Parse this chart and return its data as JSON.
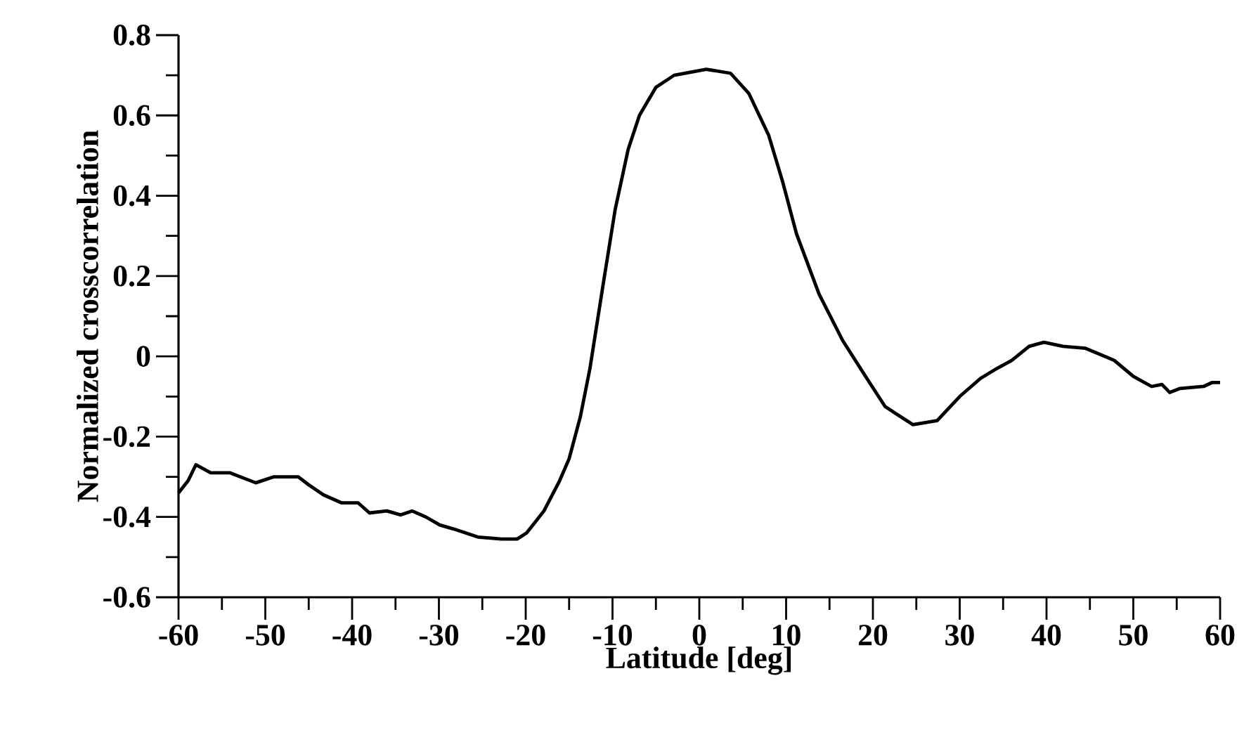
{
  "chart_data": {
    "type": "line",
    "xlabel": "Latitude [deg]",
    "ylabel": "Normalized crosscorrelation",
    "xlim": [
      -60,
      60
    ],
    "ylim": [
      -0.6,
      0.8
    ],
    "xticks": [
      -60,
      {
        "value": -55,
        "label": null
      },
      -50,
      {
        "value": -45,
        "label": null
      },
      -40,
      {
        "value": -35,
        "label": null
      },
      -30,
      {
        "value": -25,
        "label": null
      },
      -20,
      {
        "value": -15,
        "label": null
      },
      -10,
      {
        "value": -5,
        "label": null
      },
      0,
      {
        "value": 5,
        "label": null
      },
      10,
      {
        "value": 15,
        "label": null
      },
      20,
      {
        "value": 25,
        "label": null
      },
      30,
      {
        "value": 35,
        "label": null
      },
      40,
      {
        "value": 45,
        "label": null
      },
      50,
      {
        "value": 55,
        "label": null
      },
      60
    ],
    "yticks": [
      -0.6,
      {
        "value": -0.5,
        "label": null
      },
      -0.4,
      {
        "value": -0.3,
        "label": null
      },
      -0.2,
      {
        "value": -0.1,
        "label": null
      },
      0,
      {
        "value": 0.1,
        "label": null
      },
      0.2,
      {
        "value": 0.3,
        "label": null
      },
      0.4,
      {
        "value": 0.5,
        "label": null
      },
      0.6,
      {
        "value": 0.7,
        "label": null
      },
      0.8
    ],
    "marker": "none",
    "line_style": "solid",
    "series": [
      {
        "color": "#000000",
        "x": [
          -60,
          -58.9,
          -58,
          -56.3,
          -54.1,
          -51.1,
          -49,
          -46.2,
          -45,
          -43.3,
          -41.2,
          -39.3,
          -38,
          -36,
          -34.4,
          -33.1,
          -31.5,
          -29.9,
          -28.3,
          -25.5,
          -22.8,
          -21,
          -19.9,
          -17.9,
          -16.1,
          -15,
          -13.7,
          -12.6,
          -11,
          -9.7,
          -8.2,
          -6.9,
          -5,
          -2.9,
          0.8,
          3.6,
          5.7,
          8,
          9.6,
          11.2,
          13.8,
          16.5,
          19.3,
          21.4,
          24.6,
          27.4,
          30,
          32.4,
          34.3,
          36,
          38,
          39.7,
          41.9,
          44.5,
          47.8,
          50,
          52.1,
          53.3,
          54.2,
          55.4,
          58.1,
          59.1,
          60
        ],
        "values": [
          -0.34,
          -0.31,
          -0.27,
          -0.29,
          -0.29,
          -0.315,
          -0.3,
          -0.3,
          -0.32,
          -0.345,
          -0.365,
          -0.365,
          -0.39,
          -0.385,
          -0.395,
          -0.385,
          -0.4,
          -0.42,
          -0.43,
          -0.45,
          -0.455,
          -0.455,
          -0.44,
          -0.385,
          -0.31,
          -0.255,
          -0.15,
          -0.03,
          0.19,
          0.365,
          0.515,
          0.6,
          0.67,
          0.7,
          0.715,
          0.705,
          0.655,
          0.55,
          0.435,
          0.305,
          0.155,
          0.04,
          -0.055,
          -0.125,
          -0.17,
          -0.16,
          -0.1,
          -0.055,
          -0.03,
          -0.01,
          0.025,
          0.035,
          0.025,
          0.02,
          -0.01,
          -0.05,
          -0.075,
          -0.07,
          -0.09,
          -0.08,
          -0.075,
          -0.065,
          -0.065
        ]
      }
    ]
  }
}
